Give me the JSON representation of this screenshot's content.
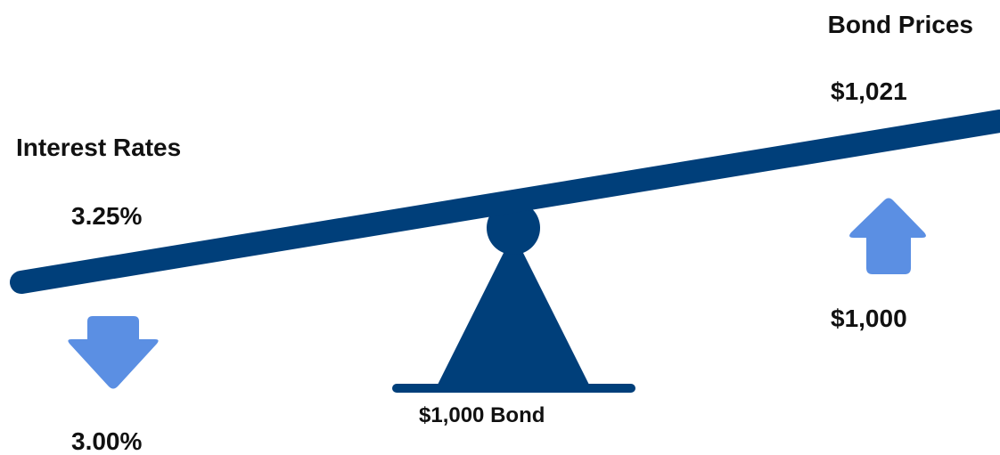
{
  "interest_rates": {
    "heading": "Interest Rates",
    "before": "3.25%",
    "after": "3.00%",
    "direction": "down"
  },
  "bond_prices": {
    "heading": "Bond Prices",
    "before": "$1,000",
    "after": "$1,021",
    "direction": "up"
  },
  "fulcrum": {
    "label": "$1,000 Bond"
  },
  "icons": {
    "rates_arrow": "arrow-down-icon",
    "prices_arrow": "arrow-up-icon"
  },
  "colors": {
    "beam": "#003f7a",
    "arrow": "#5b8fe3",
    "text": "#111111"
  }
}
